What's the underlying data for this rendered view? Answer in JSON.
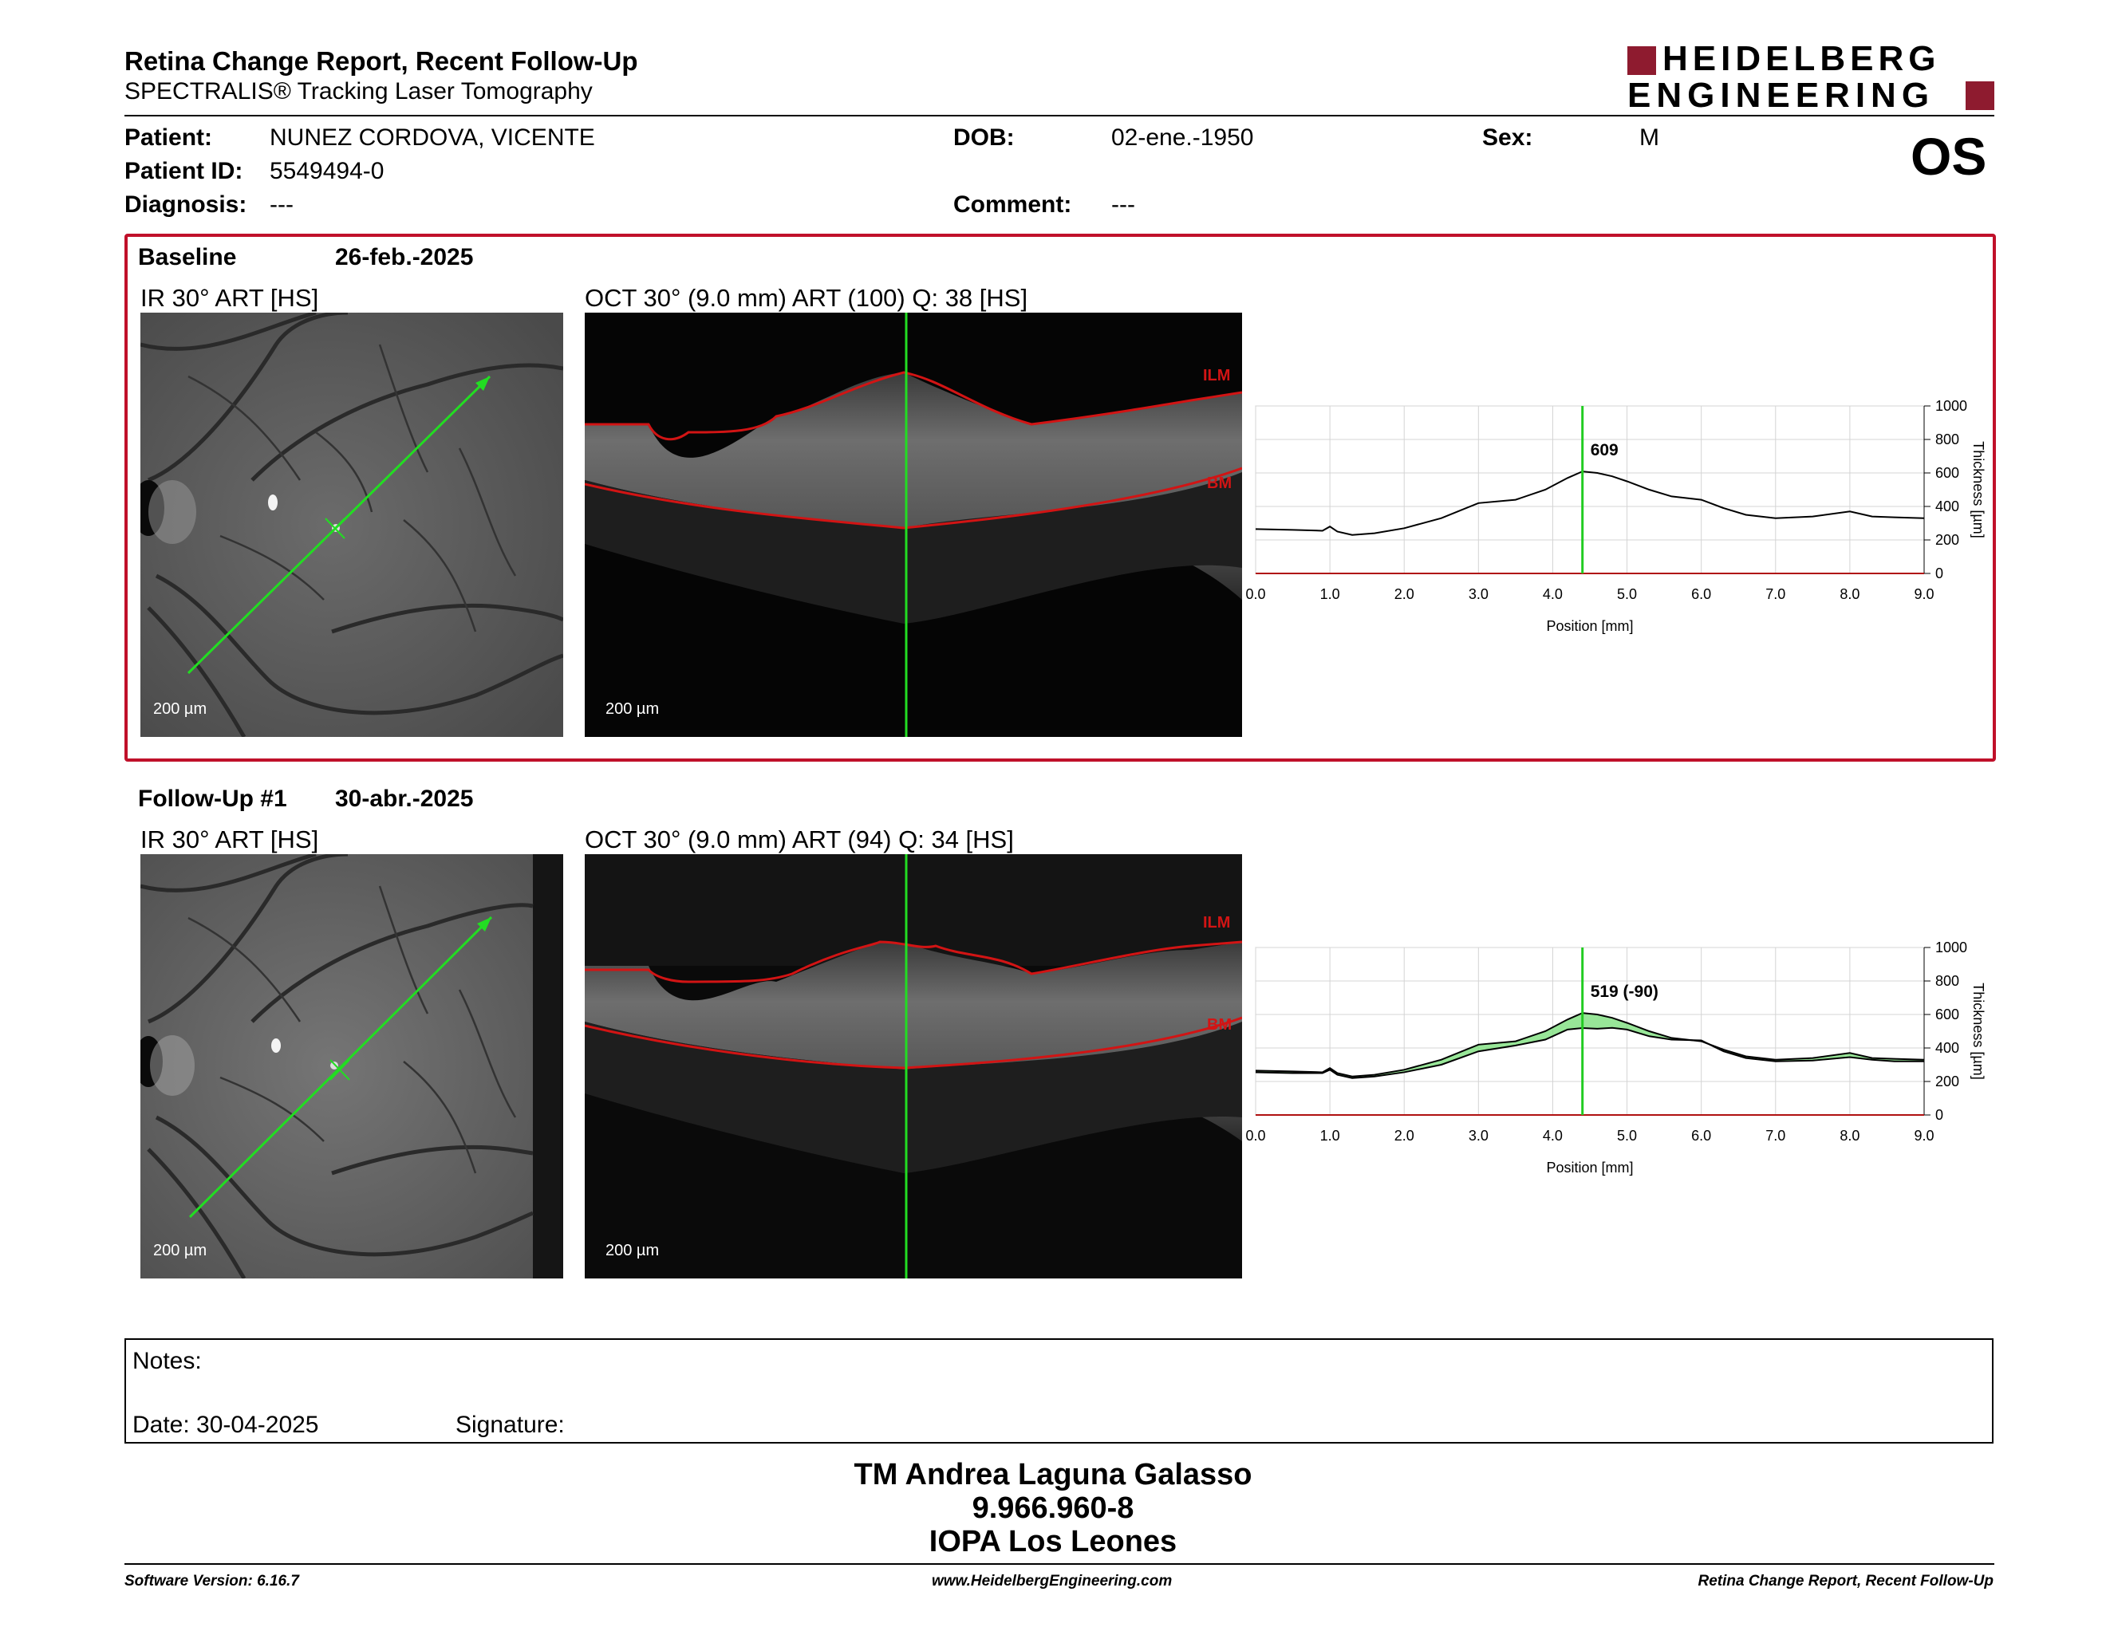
{
  "header": {
    "title": "Retina Change Report, Recent Follow-Up",
    "subtitle": "SPECTRALIS® Tracking Laser Tomography",
    "logo_line1": "HEIDELBERG",
    "logo_line2": "ENGINEERING",
    "brand_color": "#8e1b2f"
  },
  "patient": {
    "patient_label": "Patient:",
    "patient_value": "NUNEZ CORDOVA, VICENTE",
    "id_label": "Patient ID:",
    "id_value": "5549494-0",
    "diagnosis_label": "Diagnosis:",
    "diagnosis_value": "---",
    "dob_label": "DOB:",
    "dob_value": "02-ene.-1950",
    "comment_label": "Comment:",
    "comment_value": "---",
    "sex_label": "Sex:",
    "sex_value": "M",
    "eye": "OS"
  },
  "baseline": {
    "label": "Baseline",
    "date": "26-feb.-2025",
    "ir_title": "IR 30° ART [HS]",
    "oct_title": "OCT 30° (9.0 mm) ART (100) Q: 38 [HS]",
    "ir_scale": "200 µm",
    "oct_scale": "200 µm",
    "ilm_label": "ILM",
    "bm_label": "BM",
    "highlight_color": "#c0102a"
  },
  "followup": {
    "label": "Follow-Up #1",
    "date": "30-abr.-2025",
    "ir_title": "IR 30° ART [HS]",
    "oct_title": "OCT 30° (9.0 mm) ART (94) Q: 34 [HS]",
    "ir_scale": "200 µm",
    "oct_scale": "200 µm",
    "ilm_label": "ILM",
    "bm_label": "BM"
  },
  "chart_data": [
    {
      "type": "line",
      "xlabel": "Position [mm]",
      "ylabel": "Thickness [µm]",
      "xlim": [
        0,
        9
      ],
      "ylim": [
        0,
        1000
      ],
      "x_ticks": [
        "0.0",
        "1.0",
        "2.0",
        "3.0",
        "4.0",
        "5.0",
        "6.0",
        "7.0",
        "8.0",
        "9.0"
      ],
      "y_ticks": [
        "0",
        "200",
        "400",
        "600",
        "800",
        "1000"
      ],
      "cursor_x": 4.4,
      "cursor_label": "609",
      "series": [
        {
          "x": [
            0,
            0.5,
            0.9,
            1.0,
            1.1,
            1.3,
            1.6,
            2.0,
            2.5,
            3.0,
            3.5,
            3.9,
            4.2,
            4.4,
            4.6,
            4.8,
            5.0,
            5.3,
            5.6,
            6.0,
            6.3,
            6.6,
            7.0,
            7.5,
            8.0,
            8.3,
            8.6,
            9.0
          ],
          "values": [
            265,
            260,
            255,
            280,
            250,
            230,
            240,
            270,
            330,
            420,
            440,
            500,
            570,
            609,
            600,
            580,
            550,
            500,
            460,
            440,
            390,
            350,
            330,
            340,
            370,
            340,
            335,
            330
          ]
        }
      ],
      "grid": true,
      "cursor_color": "#22cc22"
    },
    {
      "type": "area",
      "xlabel": "Position [mm]",
      "ylabel": "Thickness [µm]",
      "xlim": [
        0,
        9
      ],
      "ylim": [
        0,
        1000
      ],
      "x_ticks": [
        "0.0",
        "1.0",
        "2.0",
        "3.0",
        "4.0",
        "5.0",
        "6.0",
        "7.0",
        "8.0",
        "9.0"
      ],
      "y_ticks": [
        "0",
        "200",
        "400",
        "600",
        "800",
        "1000"
      ],
      "cursor_x": 4.4,
      "cursor_label": "519 (-90)",
      "series": [
        {
          "x": [
            0,
            0.5,
            0.9,
            1.0,
            1.1,
            1.3,
            1.6,
            2.0,
            2.5,
            3.0,
            3.5,
            3.9,
            4.2,
            4.4,
            4.6,
            4.8,
            5.0,
            5.3,
            5.6,
            6.0,
            6.3,
            6.6,
            7.0,
            7.5,
            8.0,
            8.3,
            8.6,
            9.0
          ],
          "values": [
            265,
            260,
            255,
            280,
            250,
            230,
            240,
            270,
            330,
            420,
            440,
            500,
            570,
            609,
            600,
            580,
            550,
            500,
            460,
            440,
            390,
            350,
            330,
            340,
            370,
            340,
            335,
            330
          ]
        },
        {
          "x": [
            0,
            0.5,
            0.9,
            1.0,
            1.1,
            1.3,
            1.6,
            2.0,
            2.5,
            3.0,
            3.5,
            3.9,
            4.2,
            4.4,
            4.6,
            4.8,
            5.0,
            5.3,
            5.6,
            6.0,
            6.3,
            6.6,
            7.0,
            7.5,
            8.0,
            8.3,
            8.6,
            9.0
          ],
          "values": [
            255,
            250,
            250,
            270,
            240,
            220,
            230,
            255,
            300,
            380,
            415,
            450,
            510,
            519,
            515,
            520,
            510,
            470,
            450,
            445,
            380,
            340,
            320,
            325,
            345,
            330,
            320,
            320
          ]
        }
      ],
      "grid": true,
      "fill_color": "#7ee07e",
      "cursor_color": "#22cc22"
    }
  ],
  "notes": {
    "notes_label": "Notes:",
    "date_label": "Date: 30-04-2025",
    "signature_label": "Signature:"
  },
  "signatory": {
    "name": "TM Andrea Laguna Galasso",
    "rut": "9.966.960-8",
    "institution": "IOPA Los Leones"
  },
  "footer": {
    "software": "Software Version: 6.16.7",
    "url": "www.HeidelbergEngineering.com",
    "report": "Retina Change Report, Recent Follow-Up"
  }
}
